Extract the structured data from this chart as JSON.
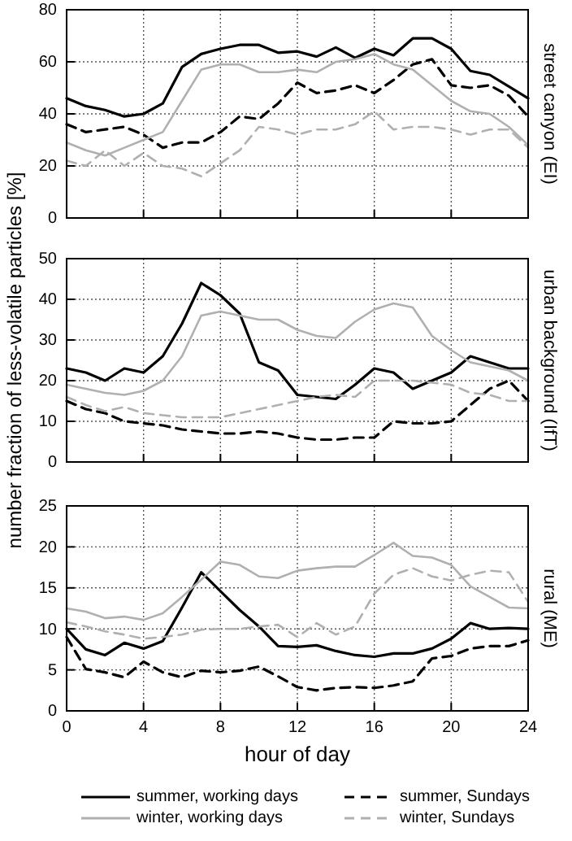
{
  "chart_data": [
    {
      "type": "line",
      "y2label": "street canyon (EI)",
      "x": [
        0,
        1,
        2,
        3,
        4,
        5,
        6,
        7,
        8,
        9,
        10,
        11,
        12,
        13,
        14,
        15,
        16,
        17,
        18,
        19,
        20,
        21,
        22,
        23,
        24
      ],
      "xlim": [
        0,
        24
      ],
      "xticks": [
        0,
        4,
        8,
        12,
        16,
        20,
        24
      ],
      "ylim": [
        0,
        80
      ],
      "yticks": [
        0,
        20,
        40,
        60,
        80
      ],
      "grid": true,
      "tick_labels": "y",
      "series": [
        {
          "color": "#000000",
          "line_style": "solid",
          "values": [
            46,
            43,
            41.5,
            39,
            40,
            44,
            58,
            63,
            65,
            66.5,
            66.5,
            63.5,
            64,
            62,
            65.5,
            61.5,
            65,
            62.5,
            69,
            69,
            65,
            56.5,
            55,
            50.5,
            46
          ]
        },
        {
          "color": "#000000",
          "line_style": "dashed",
          "values": [
            36,
            33,
            34,
            35,
            32,
            27,
            29,
            29,
            33,
            39,
            38,
            44,
            52,
            48,
            49,
            51,
            48,
            53,
            59,
            61,
            51,
            50,
            51,
            47,
            39
          ]
        },
        {
          "color": "#b0b0b0",
          "line_style": "solid",
          "values": [
            29,
            26,
            24,
            27,
            30,
            33,
            45,
            57,
            59,
            59,
            56,
            56,
            57,
            56,
            60,
            61,
            63,
            59,
            57,
            51,
            45,
            41,
            40,
            35,
            28
          ]
        },
        {
          "color": "#b0b0b0",
          "line_style": "dashed",
          "values": [
            22,
            20,
            26,
            20,
            25,
            20,
            19,
            16,
            21,
            26,
            35,
            34,
            32,
            34,
            34,
            36,
            41,
            34,
            35,
            35,
            34,
            32,
            34,
            34,
            27
          ]
        }
      ]
    },
    {
      "type": "line",
      "y2label": "urban background (IfT)",
      "ylabel": "number fraction of less-volatile particles [%]",
      "x": [
        0,
        1,
        2,
        3,
        4,
        5,
        6,
        7,
        8,
        9,
        10,
        11,
        12,
        13,
        14,
        15,
        16,
        17,
        18,
        19,
        20,
        21,
        22,
        23,
        24
      ],
      "xlim": [
        0,
        24
      ],
      "xticks": [
        0,
        4,
        8,
        12,
        16,
        20,
        24
      ],
      "ylim": [
        0,
        50
      ],
      "yticks": [
        0,
        10,
        20,
        30,
        40,
        50
      ],
      "grid": true,
      "tick_labels": "y",
      "series": [
        {
          "color": "#000000",
          "line_style": "solid",
          "values": [
            23,
            22,
            20,
            23,
            22,
            26,
            34,
            44,
            41,
            36.5,
            24.5,
            22.5,
            16.5,
            16,
            15.5,
            19,
            23,
            22,
            18,
            20,
            22,
            26,
            24.5,
            23,
            23
          ]
        },
        {
          "color": "#000000",
          "line_style": "dashed",
          "values": [
            15,
            13,
            12,
            10,
            9.5,
            9,
            8,
            7.5,
            7,
            7,
            7.5,
            7,
            6,
            5.5,
            5.5,
            6,
            6,
            10,
            9.5,
            9.5,
            10,
            14,
            18,
            20,
            15
          ]
        },
        {
          "color": "#b0b0b0",
          "line_style": "solid",
          "values": [
            19,
            18,
            17,
            16.5,
            17.5,
            20,
            26,
            36,
            37,
            36,
            35,
            35,
            32.5,
            31,
            30.5,
            34.5,
            37.5,
            39,
            38,
            31,
            27.5,
            24.5,
            23.5,
            22.5,
            20
          ]
        },
        {
          "color": "#b0b0b0",
          "line_style": "dashed",
          "values": [
            16,
            14,
            12.5,
            13.5,
            12,
            11.5,
            11,
            11,
            11,
            12,
            13,
            14,
            15,
            16,
            16.5,
            16,
            20,
            20,
            20,
            19.5,
            19,
            17,
            16.5,
            15,
            15
          ]
        }
      ]
    },
    {
      "type": "line",
      "y2label": "rural (ME)",
      "xlabel": "hour of day",
      "x": [
        0,
        1,
        2,
        3,
        4,
        5,
        6,
        7,
        8,
        9,
        10,
        11,
        12,
        13,
        14,
        15,
        16,
        17,
        18,
        19,
        20,
        21,
        22,
        23,
        24
      ],
      "xlim": [
        0,
        24
      ],
      "xticks": [
        0,
        4,
        8,
        12,
        16,
        20,
        24
      ],
      "ylim": [
        0,
        25
      ],
      "yticks": [
        0,
        5,
        10,
        15,
        20,
        25
      ],
      "grid": true,
      "legend": "bottom",
      "series": [
        {
          "name": "summer, working days",
          "color": "#000000",
          "line_style": "solid",
          "values": [
            10,
            7.5,
            6.8,
            8.3,
            7.6,
            8.5,
            12.6,
            16.9,
            14.6,
            12.3,
            10.3,
            7.9,
            7.8,
            8,
            7.3,
            6.8,
            6.6,
            7,
            7,
            7.6,
            8.8,
            10.7,
            10,
            10.1,
            10
          ]
        },
        {
          "name": "summer, Sundays",
          "color": "#000000",
          "line_style": "dashed",
          "values": [
            9,
            5.1,
            4.7,
            4.1,
            6,
            4.7,
            4.1,
            4.9,
            4.7,
            4.9,
            5.4,
            4.2,
            2.9,
            2.5,
            2.8,
            2.9,
            2.8,
            3.1,
            3.6,
            6.4,
            6.7,
            7.6,
            7.9,
            7.9,
            8.6
          ]
        },
        {
          "name": "winter, working days",
          "color": "#b0b0b0",
          "line_style": "solid",
          "values": [
            12.5,
            12.1,
            11.3,
            11.5,
            11.1,
            11.9,
            13.9,
            16,
            18.2,
            17.8,
            16.4,
            16.2,
            17.1,
            17.4,
            17.6,
            17.6,
            19,
            20.5,
            18.9,
            18.7,
            17.8,
            15.2,
            13.9,
            12.6,
            12.5
          ]
        },
        {
          "name": "winter, Sundays",
          "color": "#b0b0b0",
          "line_style": "dashed",
          "values": [
            10.8,
            10.3,
            9.7,
            9.3,
            8.8,
            9,
            9.3,
            9.9,
            10,
            10,
            10.3,
            10.5,
            9,
            10.7,
            9.3,
            10.3,
            14.3,
            16.6,
            17.4,
            16.4,
            15.9,
            16.6,
            17.1,
            16.9,
            13.3
          ]
        }
      ]
    }
  ]
}
